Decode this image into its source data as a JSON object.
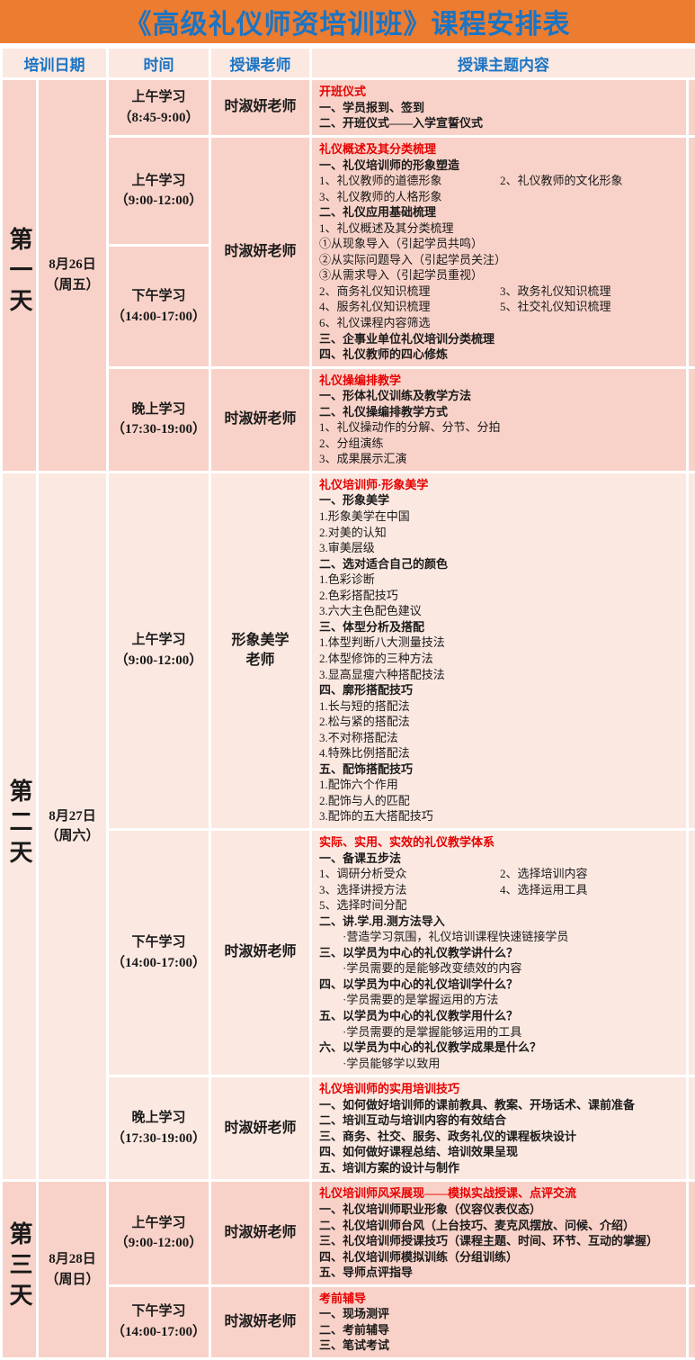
{
  "title": "《高级礼仪师资培训班》课程安排表",
  "colors": {
    "title_bar_bg": "#EC7C30",
    "title_text": "#1B74C4",
    "header_text": "#1B74C4",
    "day_shade_dark": "#F8D2C8",
    "day_shade_light": "#FBE8E1",
    "section_title_red": "#E60000",
    "body_text": "#1A1A1A",
    "grid_border": "#FFFFFF"
  },
  "header": {
    "date": "培训日期",
    "time": "时间",
    "teacher": "授课老师",
    "topic": "授课主题内容"
  },
  "days": [
    {
      "label": "第一天",
      "date": "8月26日\n（周五）",
      "sessions": [
        {
          "time": "上午学习\n（8:45-9:00）",
          "teacher": "时淑妍老师",
          "lines": [
            {
              "style": "red",
              "text": "开班仪式"
            },
            {
              "style": "b",
              "text": "一、学员报到、签到"
            },
            {
              "style": "b",
              "text": "二、开班仪式——入学宣誓仪式"
            }
          ]
        },
        {
          "times": [
            "上午学习\n（9:00-12:00）",
            "下午学习\n（14:00-17:00）"
          ],
          "teacher": "时淑妍老师",
          "lines": [
            {
              "style": "red",
              "text": "礼仪概述及其分类梳理"
            },
            {
              "style": "b",
              "text": "一、礼仪培训师的形象塑造"
            },
            {
              "style": "cols",
              "cols": [
                "1、礼仪教师的道德形象",
                "2、礼仪教师的文化形象"
              ]
            },
            {
              "style": "n",
              "text": "3、礼仪教师的人格形象"
            },
            {
              "style": "b",
              "text": "二、礼仪应用基础梳理"
            },
            {
              "style": "n",
              "text": "1、礼仪概述及其分类梳理"
            },
            {
              "style": "n",
              "text": "①从现象导入（引起学员共鸣）"
            },
            {
              "style": "n",
              "text": "②从实际问题导入（引起学员关注）"
            },
            {
              "style": "n",
              "text": "③从需求导入（引起学员重视）"
            },
            {
              "style": "cols",
              "cols": [
                "2、商务礼仪知识梳理",
                "3、政务礼仪知识梳理"
              ]
            },
            {
              "style": "cols",
              "cols": [
                "4、服务礼仪知识梳理",
                "5、社交礼仪知识梳理"
              ]
            },
            {
              "style": "n",
              "text": "6、礼仪课程内容筛选"
            },
            {
              "style": "b",
              "text": "三、企事业单位礼仪培训分类梳理"
            },
            {
              "style": "b",
              "text": "四、礼仪教师的四心修炼"
            }
          ]
        },
        {
          "time": "晚上学习\n（17:30-19:00）",
          "teacher": "时淑妍老师",
          "lines": [
            {
              "style": "red",
              "text": "礼仪操编排教学"
            },
            {
              "style": "b",
              "text": "一、形体礼仪训练及教学方法"
            },
            {
              "style": "b",
              "text": "二、礼仪操编排教学方式"
            },
            {
              "style": "n",
              "text": "1、礼仪操动作的分解、分节、分拍"
            },
            {
              "style": "n",
              "text": "2、分组演练"
            },
            {
              "style": "n",
              "text": "3、成果展示汇演"
            }
          ]
        }
      ]
    },
    {
      "label": "第二天",
      "date": "8月27日\n（周六）",
      "sessions": [
        {
          "time": "上午学习\n（9:00-12:00）",
          "teacher": "形象美学\n老师",
          "lines": [
            {
              "style": "red",
              "text": "礼仪培训师·形象美学"
            },
            {
              "style": "b",
              "text": "一、形象美学"
            },
            {
              "style": "n",
              "text": "1.形象美学在中国"
            },
            {
              "style": "n",
              "text": "2.对美的认知"
            },
            {
              "style": "n",
              "text": "3.审美层级"
            },
            {
              "style": "b",
              "text": "二、选对适合自己的颜色"
            },
            {
              "style": "n",
              "text": "1.色彩诊断"
            },
            {
              "style": "n",
              "text": "2.色彩搭配技巧"
            },
            {
              "style": "n",
              "text": "3.六大主色配色建议"
            },
            {
              "style": "b",
              "text": "三、体型分析及搭配"
            },
            {
              "style": "n",
              "text": "1.体型判断八大测量技法"
            },
            {
              "style": "n",
              "text": "2.体型修饰的三种方法"
            },
            {
              "style": "n",
              "text": "3.显高显瘦六种搭配技法"
            },
            {
              "style": "b",
              "text": "四、廓形搭配技巧"
            },
            {
              "style": "n",
              "text": "1.长与短的搭配法"
            },
            {
              "style": "n",
              "text": "2.松与紧的搭配法"
            },
            {
              "style": "n",
              "text": "3.不对称搭配法"
            },
            {
              "style": "n",
              "text": "4.特殊比例搭配法"
            },
            {
              "style": "b",
              "text": "五、配饰搭配技巧"
            },
            {
              "style": "n",
              "text": "1.配饰六个作用"
            },
            {
              "style": "n",
              "text": "2.配饰与人的匹配"
            },
            {
              "style": "n",
              "text": "3.配饰的五大搭配技巧"
            }
          ]
        },
        {
          "time": "下午学习\n（14:00-17:00）",
          "teacher": "时淑妍老师",
          "lines": [
            {
              "style": "red",
              "text": "实际、实用、实效的礼仪教学体系"
            },
            {
              "style": "b",
              "text": "一、备课五步法"
            },
            {
              "style": "cols",
              "cols": [
                "1、调研分析受众",
                "2、选择培训内容"
              ]
            },
            {
              "style": "cols",
              "cols": [
                "3、选择讲授方法",
                "4、选择运用工具"
              ]
            },
            {
              "style": "n",
              "text": "5、选择时间分配"
            },
            {
              "style": "b",
              "text": "二、讲.学.用.测方法导入"
            },
            {
              "style": "i",
              "text": "·营造学习氛围，礼仪培训课程快速链接学员"
            },
            {
              "style": "b",
              "text": "三、以学员为中心的礼仪教学讲什么？"
            },
            {
              "style": "i",
              "text": "·学员需要的是能够改变绩效的内容"
            },
            {
              "style": "b",
              "text": "四、以学员为中心的礼仪培训学什么？"
            },
            {
              "style": "i",
              "text": "·学员需要的是掌握运用的方法"
            },
            {
              "style": "b",
              "text": "五、以学员为中心的礼仪教学用什么？"
            },
            {
              "style": "i",
              "text": "·学员需要的是掌握能够运用的工具"
            },
            {
              "style": "b",
              "text": "六、以学员为中心的礼仪教学成果是什么？"
            },
            {
              "style": "i",
              "text": "·学员能够学以致用"
            }
          ]
        },
        {
          "time": "晚上学习\n（17:30-19:00）",
          "teacher": "时淑妍老师",
          "lines": [
            {
              "style": "red",
              "text": "礼仪培训师的实用培训技巧"
            },
            {
              "style": "b",
              "text": "一、如何做好培训师的课前教具、教案、开场话术、课前准备"
            },
            {
              "style": "b",
              "text": "二、培训互动与培训内容的有效结合"
            },
            {
              "style": "b",
              "text": "三、商务、社交、服务、政务礼仪的课程板块设计"
            },
            {
              "style": "b",
              "text": "四、如何做好课程总结、培训效果呈现"
            },
            {
              "style": "b",
              "text": "五、培训方案的设计与制作"
            }
          ]
        }
      ]
    },
    {
      "label": "第三天",
      "date": "8月28日\n（周日）",
      "sessions": [
        {
          "time": "上午学习\n（9:00-12:00）",
          "teacher": "时淑妍老师",
          "lines": [
            {
              "style": "red",
              "text": "礼仪培训师风采展现——模拟实战授课、点评交流"
            },
            {
              "style": "b",
              "text": "一、礼仪培训师职业形象（仪容仪表仪态）"
            },
            {
              "style": "b",
              "text": "二、礼仪培训师台风（上台技巧、麦克风摆放、问候、介绍）"
            },
            {
              "style": "b",
              "text": "三、礼仪培训师授课技巧（课程主题、时间、环节、互动的掌握）"
            },
            {
              "style": "b",
              "text": "四、礼仪培训师模拟训练（分组训练）"
            },
            {
              "style": "b",
              "text": "五、导师点评指导"
            }
          ]
        },
        {
          "time": "下午学习\n（14:00-17:00）",
          "teacher": "时淑妍老师",
          "lines": [
            {
              "style": "red",
              "text": "考前辅导"
            },
            {
              "style": "b",
              "text": "一、现场测评"
            },
            {
              "style": "b",
              "text": "二、考前辅导"
            },
            {
              "style": "b",
              "text": "三、笔试考试"
            }
          ]
        }
      ]
    }
  ]
}
